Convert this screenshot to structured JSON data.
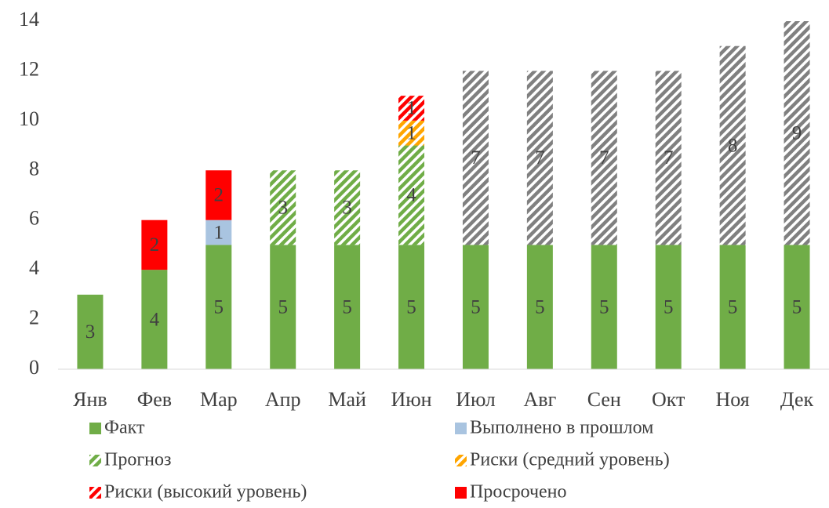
{
  "chart_data": {
    "type": "bar",
    "stacked": true,
    "categories": [
      "Янв",
      "Фев",
      "Мар",
      "Апр",
      "Май",
      "Июн",
      "Июл",
      "Авг",
      "Сен",
      "Окт",
      "Ноя",
      "Дек"
    ],
    "series": [
      {
        "name": "Факт",
        "color": "#70ad47",
        "hatch": false,
        "values": [
          3,
          4,
          5,
          5,
          5,
          5,
          5,
          5,
          5,
          5,
          5,
          5
        ]
      },
      {
        "name": "Выполнено в прошлом",
        "color": "#a9c4e0",
        "hatch": false,
        "values": [
          null,
          null,
          1,
          null,
          null,
          null,
          null,
          null,
          null,
          null,
          null,
          null
        ]
      },
      {
        "name": "Прогноз",
        "color": "#70ad47",
        "hatch": true,
        "values": [
          null,
          null,
          null,
          3,
          3,
          4,
          null,
          null,
          null,
          null,
          null,
          null
        ]
      },
      {
        "name": "Риски (средний уровень)",
        "color": "#ffa500",
        "hatch": true,
        "values": [
          null,
          null,
          null,
          null,
          null,
          1,
          null,
          null,
          null,
          null,
          null,
          null
        ]
      },
      {
        "name": "Риски (высокий уровень)",
        "color": "#ff0000",
        "hatch": true,
        "values": [
          null,
          null,
          null,
          null,
          null,
          1,
          null,
          null,
          null,
          null,
          null,
          null
        ]
      },
      {
        "name": "Просрочено",
        "color": "#ff0000",
        "hatch": false,
        "values": [
          null,
          2,
          2,
          null,
          null,
          null,
          null,
          null,
          null,
          null,
          null,
          null
        ]
      },
      {
        "color": "#808080",
        "hatch": true,
        "values": [
          null,
          null,
          null,
          null,
          null,
          null,
          7,
          7,
          7,
          7,
          8,
          9
        ]
      }
    ],
    "ylim": [
      0,
      14
    ],
    "yticks": [
      0,
      2,
      4,
      6,
      8,
      10,
      12,
      14
    ],
    "grid": false
  }
}
